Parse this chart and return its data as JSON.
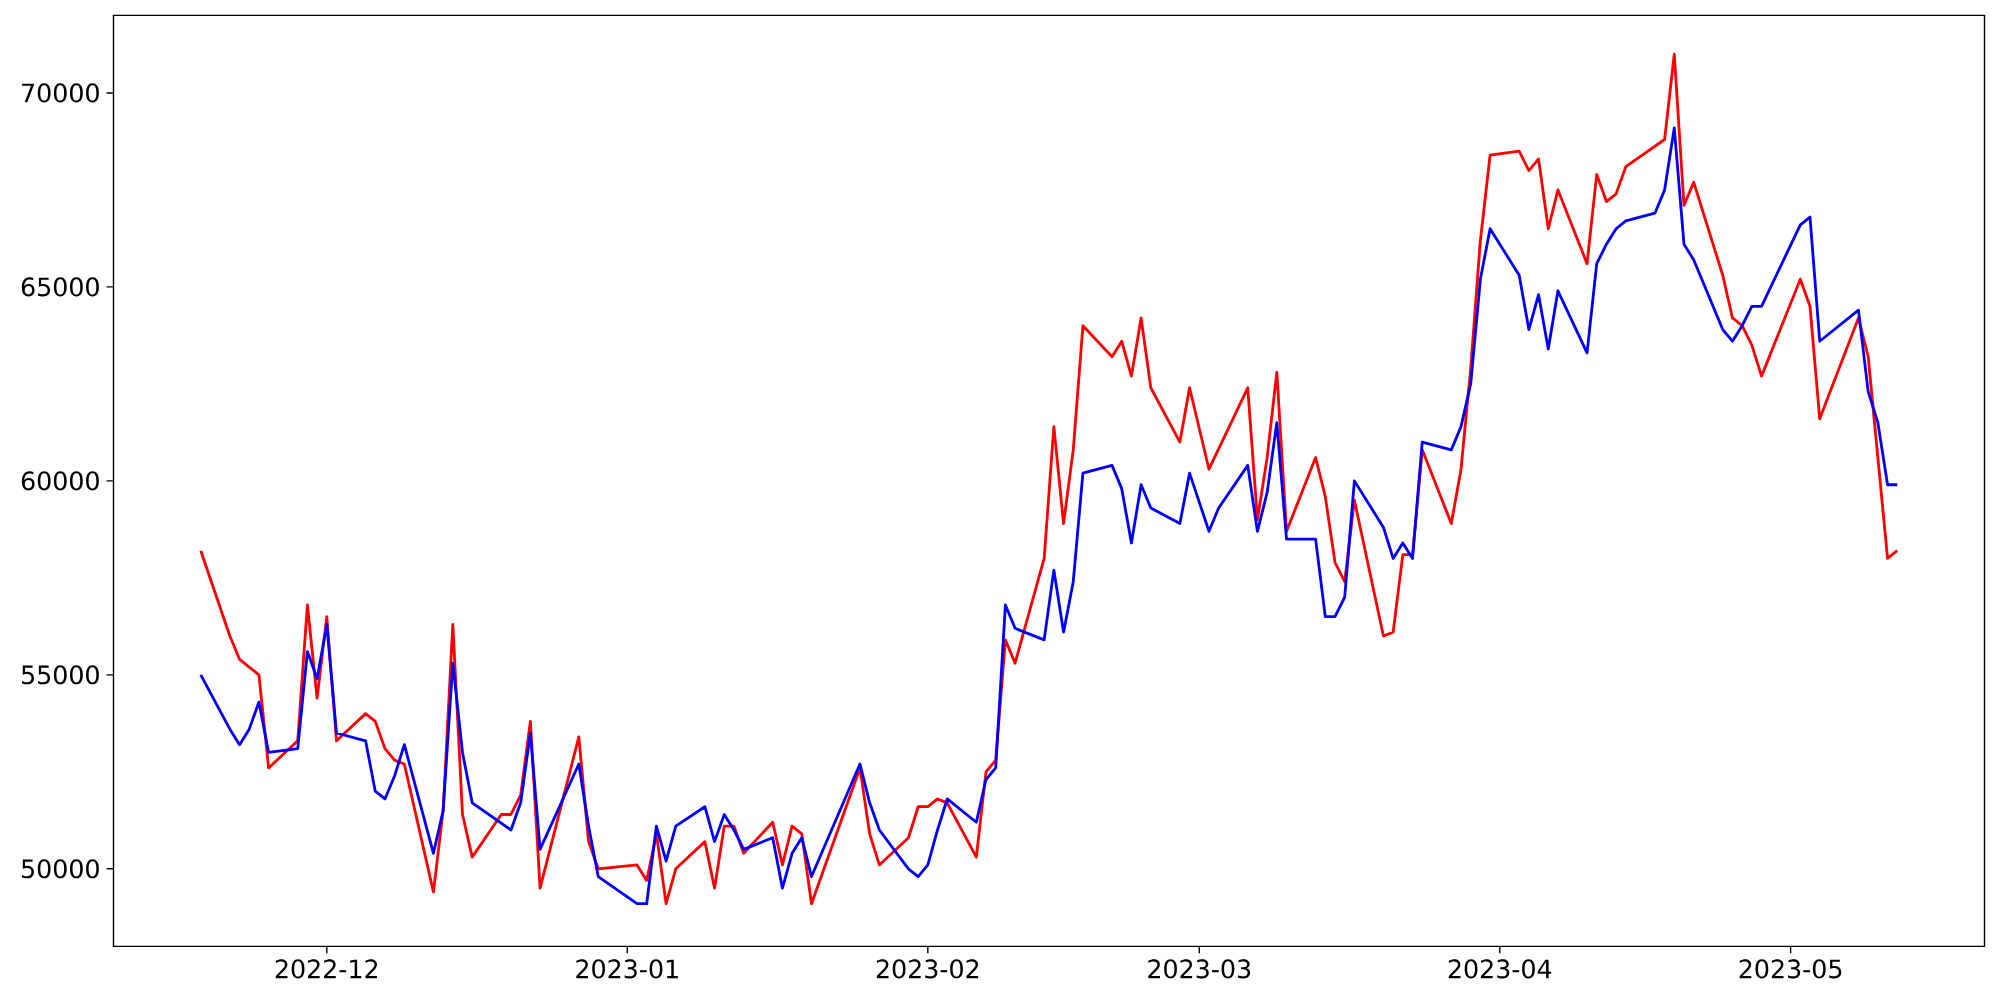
{
  "chart_data": {
    "type": "line",
    "xlim": [
      "2022-11-09",
      "2023-05-21"
    ],
    "xticks": [
      {
        "value": "2022-12-01",
        "label": "2022-12"
      },
      {
        "value": "2023-01-01",
        "label": "2023-01"
      },
      {
        "value": "2023-02-01",
        "label": "2023-02"
      },
      {
        "value": "2023-03-01",
        "label": "2023-03"
      },
      {
        "value": "2023-04-01",
        "label": "2023-04"
      },
      {
        "value": "2023-05-01",
        "label": "2023-05"
      }
    ],
    "ylim": [
      48000,
      72000
    ],
    "yticks": [
      50000,
      55000,
      60000,
      65000,
      70000
    ],
    "series": [
      {
        "color": "#ff0000",
        "x": [
          "2022-11-18",
          "2022-11-21",
          "2022-11-22",
          "2022-11-24",
          "2022-11-25",
          "2022-11-28",
          "2022-11-29",
          "2022-11-30",
          "2022-12-01",
          "2022-12-02",
          "2022-12-05",
          "2022-12-06",
          "2022-12-07",
          "2022-12-08",
          "2022-12-09",
          "2022-12-12",
          "2022-12-13",
          "2022-12-14",
          "2022-12-15",
          "2022-12-16",
          "2022-12-19",
          "2022-12-20",
          "2022-12-21",
          "2022-12-22",
          "2022-12-23",
          "2022-12-27",
          "2022-12-28",
          "2022-12-29",
          "2023-01-02",
          "2023-01-03",
          "2023-01-04",
          "2023-01-05",
          "2023-01-06",
          "2023-01-09",
          "2023-01-10",
          "2023-01-11",
          "2023-01-12",
          "2023-01-13",
          "2023-01-16",
          "2023-01-17",
          "2023-01-18",
          "2023-01-19",
          "2023-01-20",
          "2023-01-25",
          "2023-01-26",
          "2023-01-27",
          "2023-01-30",
          "2023-01-31",
          "2023-02-01",
          "2023-02-02",
          "2023-02-03",
          "2023-02-06",
          "2023-02-07",
          "2023-02-08",
          "2023-02-09",
          "2023-02-10",
          "2023-02-13",
          "2023-02-14",
          "2023-02-15",
          "2023-02-16",
          "2023-02-17",
          "2023-02-20",
          "2023-02-21",
          "2023-02-22",
          "2023-02-23",
          "2023-02-24",
          "2023-02-27",
          "2023-02-28",
          "2023-03-02",
          "2023-03-06",
          "2023-03-07",
          "2023-03-08",
          "2023-03-09",
          "2023-03-10",
          "2023-03-13",
          "2023-03-14",
          "2023-03-15",
          "2023-03-16",
          "2023-03-17",
          "2023-03-20",
          "2023-03-21",
          "2023-03-22",
          "2023-03-23",
          "2023-03-24",
          "2023-03-27",
          "2023-03-28",
          "2023-03-29",
          "2023-03-30",
          "2023-03-31",
          "2023-04-03",
          "2023-04-04",
          "2023-04-05",
          "2023-04-06",
          "2023-04-07",
          "2023-04-10",
          "2023-04-11",
          "2023-04-12",
          "2023-04-13",
          "2023-04-14",
          "2023-04-18",
          "2023-04-19",
          "2023-04-20",
          "2023-04-21",
          "2023-04-24",
          "2023-04-25",
          "2023-04-26",
          "2023-04-27",
          "2023-04-28",
          "2023-05-02",
          "2023-05-03",
          "2023-05-04",
          "2023-05-08",
          "2023-05-09",
          "2023-05-11",
          "2023-05-12"
        ],
        "values": [
          58200,
          56000,
          55400,
          55000,
          52600,
          53300,
          56800,
          54400,
          56500,
          53300,
          54000,
          53800,
          53100,
          52800,
          52700,
          49400,
          51500,
          56300,
          51400,
          50300,
          51400,
          51400,
          51900,
          53800,
          49500,
          53400,
          50700,
          50000,
          50100,
          49700,
          50900,
          49100,
          50000,
          50700,
          49500,
          51100,
          51100,
          50400,
          51200,
          50100,
          51100,
          50900,
          49100,
          52600,
          50900,
          50100,
          50800,
          51600,
          51600,
          51800,
          51700,
          50300,
          52500,
          52800,
          55900,
          55300,
          58000,
          61400,
          58900,
          60800,
          64000,
          63200,
          63600,
          62700,
          64200,
          62400,
          61000,
          62400,
          60300,
          62400,
          59000,
          60600,
          62800,
          58700,
          60600,
          59600,
          57900,
          57400,
          59500,
          56000,
          56100,
          58100,
          58100,
          60800,
          58900,
          60300,
          62900,
          66200,
          68400,
          68500,
          68000,
          68300,
          66500,
          67500,
          65600,
          67900,
          67200,
          67400,
          68100,
          68800,
          71000,
          67100,
          67700,
          65300,
          64200,
          64000,
          63500,
          62700,
          65200,
          64500,
          61600,
          64200,
          63200,
          58000,
          58200
        ]
      },
      {
        "color": "#0000ff",
        "x": [
          "2022-11-18",
          "2022-11-21",
          "2022-11-22",
          "2022-11-23",
          "2022-11-24",
          "2022-11-25",
          "2022-11-28",
          "2022-11-29",
          "2022-11-30",
          "2022-12-01",
          "2022-12-02",
          "2022-12-05",
          "2022-12-06",
          "2022-12-07",
          "2022-12-08",
          "2022-12-09",
          "2022-12-12",
          "2022-12-13",
          "2022-12-14",
          "2022-12-15",
          "2022-12-16",
          "2022-12-20",
          "2022-12-21",
          "2022-12-22",
          "2022-12-23",
          "2022-12-27",
          "2022-12-28",
          "2022-12-29",
          "2023-01-02",
          "2023-01-03",
          "2023-01-04",
          "2023-01-05",
          "2023-01-06",
          "2023-01-09",
          "2023-01-10",
          "2023-01-11",
          "2023-01-12",
          "2023-01-13",
          "2023-01-16",
          "2023-01-17",
          "2023-01-18",
          "2023-01-19",
          "2023-01-20",
          "2023-01-25",
          "2023-01-26",
          "2023-01-27",
          "2023-01-30",
          "2023-01-31",
          "2023-02-01",
          "2023-02-02",
          "2023-02-03",
          "2023-02-06",
          "2023-02-07",
          "2023-02-08",
          "2023-02-09",
          "2023-02-10",
          "2023-02-13",
          "2023-02-14",
          "2023-02-15",
          "2023-02-16",
          "2023-02-17",
          "2023-02-20",
          "2023-02-21",
          "2023-02-22",
          "2023-02-23",
          "2023-02-24",
          "2023-02-27",
          "2023-02-28",
          "2023-03-02",
          "2023-03-03",
          "2023-03-06",
          "2023-03-07",
          "2023-03-08",
          "2023-03-09",
          "2023-03-10",
          "2023-03-13",
          "2023-03-14",
          "2023-03-15",
          "2023-03-16",
          "2023-03-17",
          "2023-03-20",
          "2023-03-21",
          "2023-03-22",
          "2023-03-23",
          "2023-03-24",
          "2023-03-27",
          "2023-03-28",
          "2023-03-29",
          "2023-03-30",
          "2023-03-31",
          "2023-04-03",
          "2023-04-04",
          "2023-04-05",
          "2023-04-06",
          "2023-04-07",
          "2023-04-10",
          "2023-04-11",
          "2023-04-12",
          "2023-04-13",
          "2023-04-14",
          "2023-04-17",
          "2023-04-18",
          "2023-04-19",
          "2023-04-20",
          "2023-04-21",
          "2023-04-24",
          "2023-04-25",
          "2023-04-26",
          "2023-04-27",
          "2023-04-28",
          "2023-05-02",
          "2023-05-03",
          "2023-05-04",
          "2023-05-08",
          "2023-05-09",
          "2023-05-10",
          "2023-05-11",
          "2023-05-12"
        ],
        "values": [
          55000,
          53600,
          53200,
          53600,
          54300,
          53000,
          53100,
          55600,
          54900,
          56300,
          53500,
          53300,
          52000,
          51800,
          52400,
          53200,
          50400,
          51500,
          55300,
          53000,
          51700,
          51000,
          51700,
          53500,
          50500,
          52700,
          51100,
          49800,
          49100,
          49100,
          51100,
          50200,
          51100,
          51600,
          50700,
          51400,
          51000,
          50500,
          50800,
          49500,
          50400,
          50800,
          49800,
          52700,
          51700,
          51000,
          50000,
          49800,
          50100,
          51000,
          51800,
          51200,
          52300,
          52600,
          56800,
          56200,
          55900,
          57700,
          56100,
          57400,
          60200,
          60400,
          59800,
          58400,
          59900,
          59300,
          58900,
          60200,
          58700,
          59300,
          60400,
          58700,
          59700,
          61500,
          58500,
          58500,
          56500,
          56500,
          57000,
          60000,
          58800,
          58000,
          58400,
          58000,
          61000,
          60800,
          61400,
          62500,
          65200,
          66500,
          65300,
          63900,
          64800,
          63400,
          64900,
          63300,
          65600,
          66100,
          66500,
          66700,
          66900,
          67500,
          69100,
          66100,
          65700,
          63900,
          63600,
          64000,
          64500,
          64500,
          66600,
          66800,
          63600,
          64400,
          62300,
          61500,
          59900,
          59900
        ]
      }
    ]
  }
}
